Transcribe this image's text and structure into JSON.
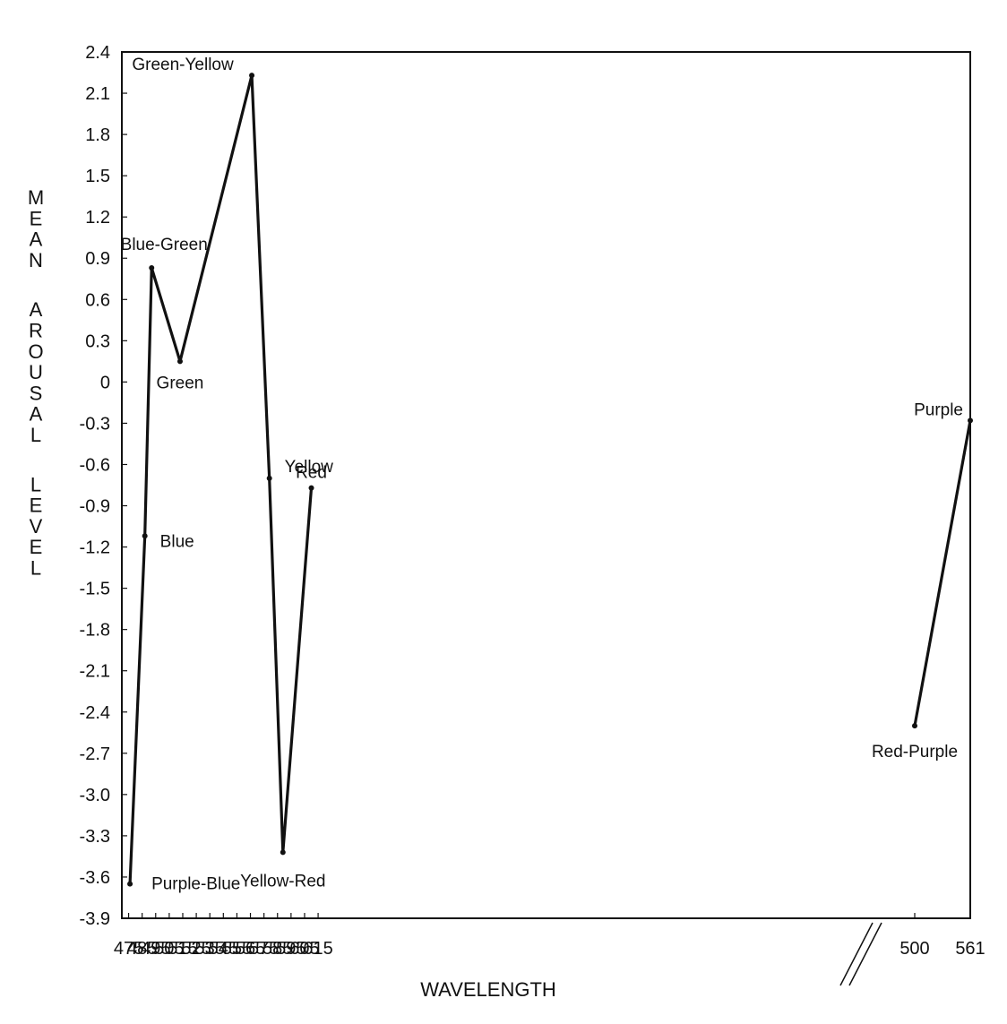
{
  "chart_data": {
    "type": "line",
    "title": "",
    "xlabel": "WAVELENGTH",
    "ylabel": "MEAN AROUSAL LEVEL",
    "ylim": [
      -3.9,
      2.4
    ],
    "grid": false,
    "legend": "none",
    "y_ticks": [
      "2.4",
      "2.1",
      "1.8",
      "1.5",
      "1.2",
      "0.9",
      "0.6",
      "0.3",
      "0",
      "-0.3",
      "-0.6",
      "-0.9",
      "-1.2",
      "-1.5",
      "-1.8",
      "-2.1",
      "-2.4",
      "-2.7",
      "-3.0",
      "-3.3",
      "-3.6",
      "-3.9"
    ],
    "x_ticks_main": [
      "475",
      "485",
      "495",
      "505",
      "515",
      "525",
      "535",
      "545",
      "555",
      "565",
      "575",
      "585",
      "595",
      "605",
      "615"
    ],
    "x_ticks_break": [
      "500",
      "561"
    ],
    "series": [
      {
        "segment": "main",
        "points": [
          {
            "label": "Purple-Blue",
            "x": 476,
            "y": -3.65
          },
          {
            "label": "Blue",
            "x": 487,
            "y": -1.12
          },
          {
            "label": "Blue-Green",
            "x": 492,
            "y": 0.83
          },
          {
            "label": "Green",
            "x": 513,
            "y": 0.15
          },
          {
            "label": "Green-Yellow",
            "x": 566,
            "y": 2.23
          },
          {
            "label": "Yellow",
            "x": 579,
            "y": -0.7
          },
          {
            "label": "Yellow-Red",
            "x": 589,
            "y": -3.42
          },
          {
            "label": "Red",
            "x": 610,
            "y": -0.77
          }
        ]
      },
      {
        "segment": "break",
        "points": [
          {
            "label": "Red-Purple",
            "x": 500,
            "y": -2.5
          },
          {
            "label": "Purple",
            "x": 561,
            "y": -0.28
          }
        ]
      }
    ],
    "line_color": "#111111"
  }
}
